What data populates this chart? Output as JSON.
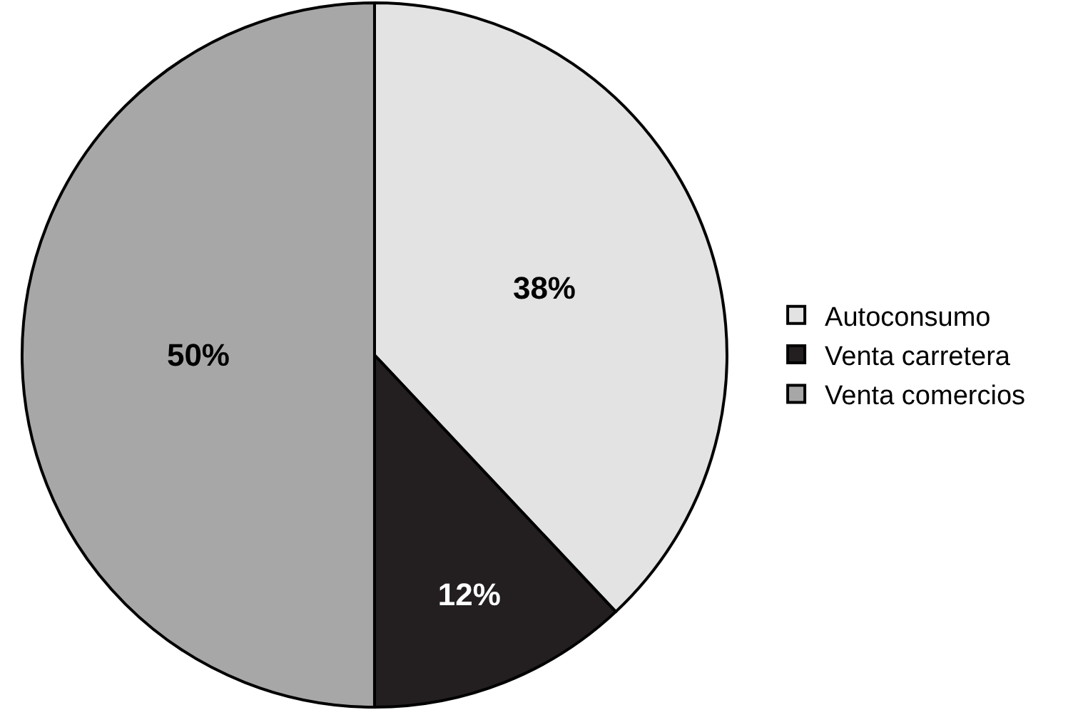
{
  "chart_data": {
    "type": "pie",
    "categories": [
      "Autoconsumo",
      "Venta carretera",
      "Venta comercios"
    ],
    "values": [
      38,
      12,
      50
    ],
    "colors": [
      "#e3e3e3",
      "#231f20",
      "#a7a7a7"
    ],
    "value_labels": [
      "38%",
      "12%",
      "50%"
    ],
    "legend": "right"
  }
}
